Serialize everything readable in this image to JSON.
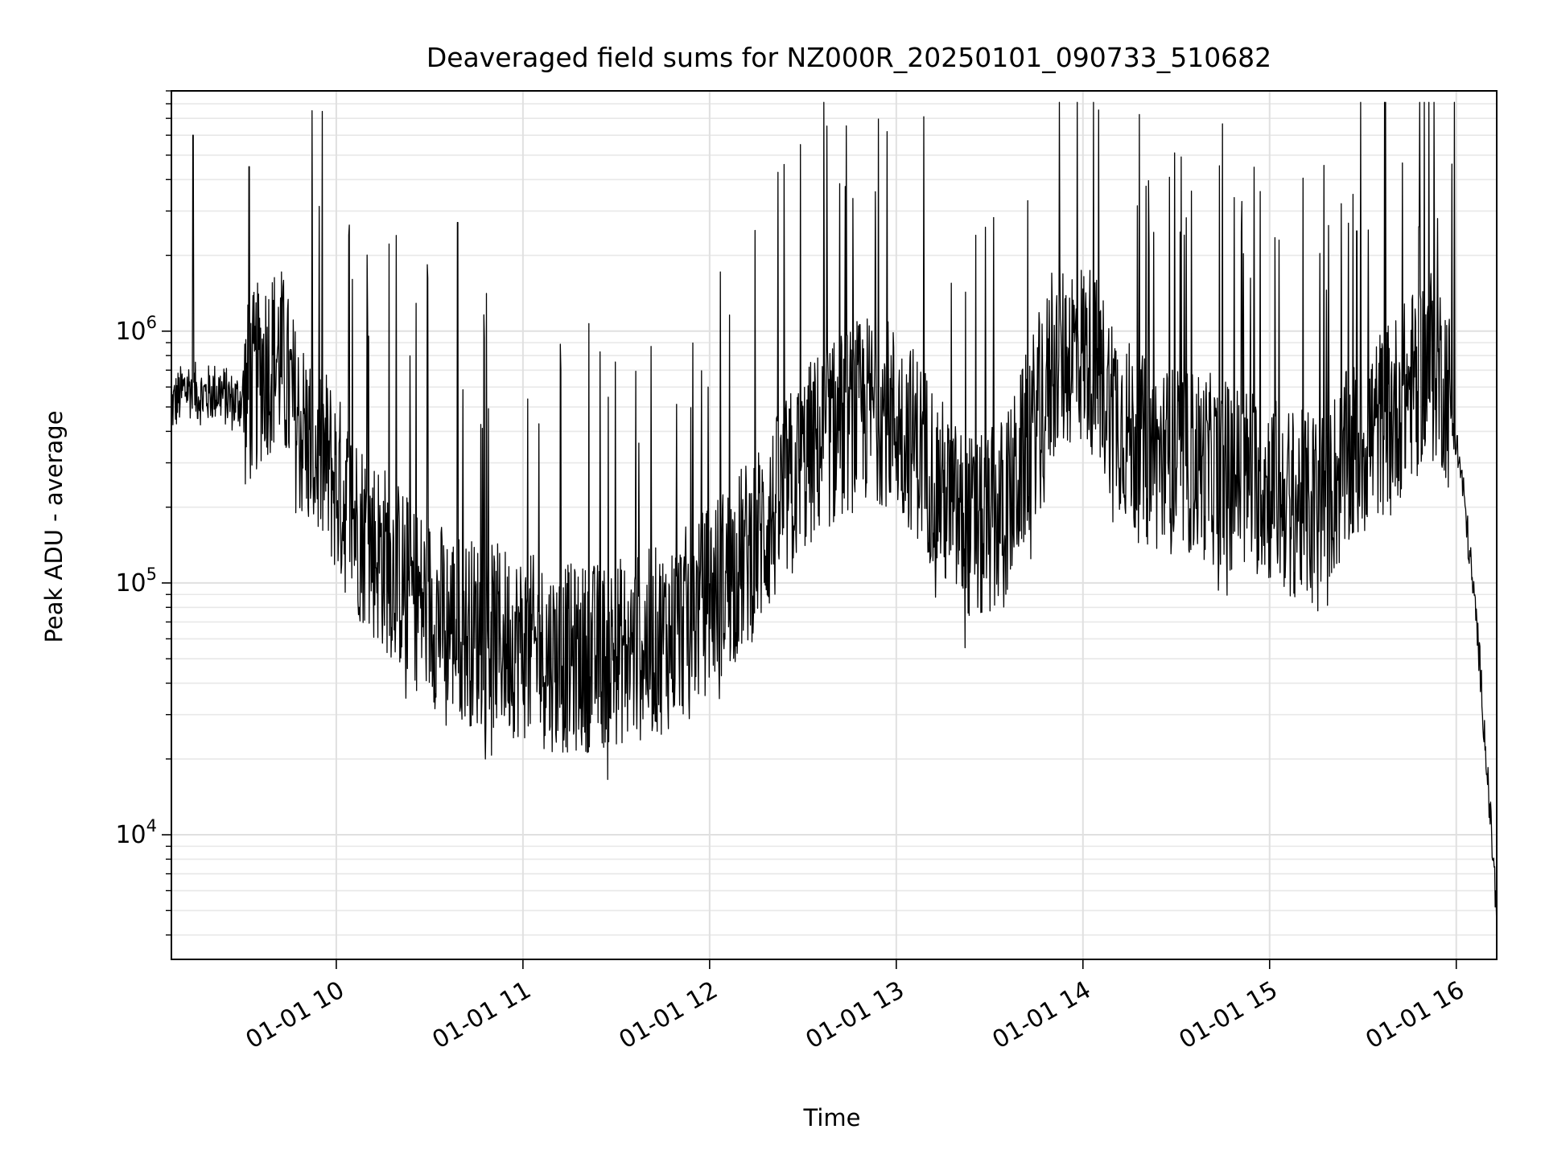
{
  "chart_data": {
    "type": "line",
    "title": "Deaveraged field sums for NZ000R_20250101_090733_510682",
    "xlabel": "Time",
    "ylabel": "Peak ADU - average",
    "yscale": "log",
    "ylim": [
      3200,
      9000000
    ],
    "xlim": [
      "01-01 09:07",
      "01-01 16:13"
    ],
    "x_ticks": [
      {
        "t": "01-01 10:00",
        "label": "01-01 10"
      },
      {
        "t": "01-01 11:00",
        "label": "01-01 11"
      },
      {
        "t": "01-01 12:00",
        "label": "01-01 12"
      },
      {
        "t": "01-01 13:00",
        "label": "01-01 13"
      },
      {
        "t": "01-01 14:00",
        "label": "01-01 14"
      },
      {
        "t": "01-01 15:00",
        "label": "01-01 15"
      },
      {
        "t": "01-01 16:00",
        "label": "01-01 16"
      }
    ],
    "y_ticks": [
      {
        "value": 10000,
        "base": "10",
        "exp": "4"
      },
      {
        "value": 100000,
        "base": "10",
        "exp": "5"
      },
      {
        "value": 1000000,
        "base": "10",
        "exp": "6"
      }
    ],
    "grid": true,
    "legend": "none",
    "line_color": "#000000",
    "series": [
      {
        "x": [
          "01-01 09:07",
          "01-01 09:12",
          "01-01 09:17",
          "01-01 09:22",
          "01-01 09:27",
          "01-01 09:32",
          "01-01 09:37",
          "01-01 09:42",
          "01-01 09:47",
          "01-01 09:52",
          "01-01 09:57",
          "01-01 10:02",
          "01-01 10:07",
          "01-01 10:12",
          "01-01 10:17",
          "01-01 10:22",
          "01-01 10:27",
          "01-01 10:32",
          "01-01 10:37",
          "01-01 10:42",
          "01-01 10:47",
          "01-01 10:52",
          "01-01 10:57",
          "01-01 11:02",
          "01-01 11:07",
          "01-01 11:12",
          "01-01 11:17",
          "01-01 11:22",
          "01-01 11:27",
          "01-01 11:32",
          "01-01 11:37",
          "01-01 11:42",
          "01-01 11:47",
          "01-01 11:52",
          "01-01 11:57",
          "01-01 12:02",
          "01-01 12:07",
          "01-01 12:12",
          "01-01 12:17",
          "01-01 12:22",
          "01-01 12:27",
          "01-01 12:32",
          "01-01 12:37",
          "01-01 12:42",
          "01-01 12:47",
          "01-01 12:52",
          "01-01 12:57",
          "01-01 13:02",
          "01-01 13:07",
          "01-01 13:12",
          "01-01 13:17",
          "01-01 13:22",
          "01-01 13:27",
          "01-01 13:32",
          "01-01 13:37",
          "01-01 13:42",
          "01-01 13:47",
          "01-01 13:52",
          "01-01 13:57",
          "01-01 14:02",
          "01-01 14:07",
          "01-01 14:12",
          "01-01 14:17",
          "01-01 14:22",
          "01-01 14:27",
          "01-01 14:32",
          "01-01 14:37",
          "01-01 14:42",
          "01-01 14:47",
          "01-01 14:52",
          "01-01 14:57",
          "01-01 15:02",
          "01-01 15:07",
          "01-01 15:12",
          "01-01 15:17",
          "01-01 15:22",
          "01-01 15:27",
          "01-01 15:32",
          "01-01 15:37",
          "01-01 15:42",
          "01-01 15:47",
          "01-01 15:52",
          "01-01 15:57",
          "01-01 16:02",
          "01-01 16:07",
          "01-01 16:13"
        ],
        "y": [
          500000,
          600000,
          550000,
          580000,
          520000,
          560000,
          750000,
          800000,
          450000,
          350000,
          300000,
          220000,
          170000,
          140000,
          120000,
          100000,
          85000,
          75000,
          70000,
          65000,
          62000,
          60000,
          58000,
          55000,
          52000,
          50000,
          50000,
          51000,
          52000,
          54000,
          55000,
          58000,
          62000,
          70000,
          80000,
          95000,
          110000,
          130000,
          160000,
          200000,
          260000,
          320000,
          380000,
          420000,
          460000,
          500000,
          480000,
          420000,
          350000,
          270000,
          200000,
          170000,
          160000,
          180000,
          220000,
          350000,
          550000,
          750000,
          850000,
          800000,
          600000,
          450000,
          350000,
          320000,
          310000,
          300000,
          300000,
          280000,
          270000,
          260000,
          250000,
          230000,
          210000,
          200000,
          220000,
          260000,
          320000,
          380000,
          450000,
          520000,
          650000,
          800000,
          600000,
          250000,
          60000,
          5000
        ],
        "peaks": [
          {
            "x": "01-01 09:14",
            "y": 6000000
          },
          {
            "x": "01-01 09:32",
            "y": 4500000
          },
          {
            "x": "01-01 10:39",
            "y": 2700000
          },
          {
            "x": "01-01 13:50",
            "y": 1700000
          },
          {
            "x": "01-01 15:03",
            "y": 2300000
          },
          {
            "x": "01-01 15:28",
            "y": 2500000
          },
          {
            "x": "01-01 15:48",
            "y": 2600000
          },
          {
            "x": "01-01 15:54",
            "y": 2800000
          }
        ]
      }
    ]
  }
}
